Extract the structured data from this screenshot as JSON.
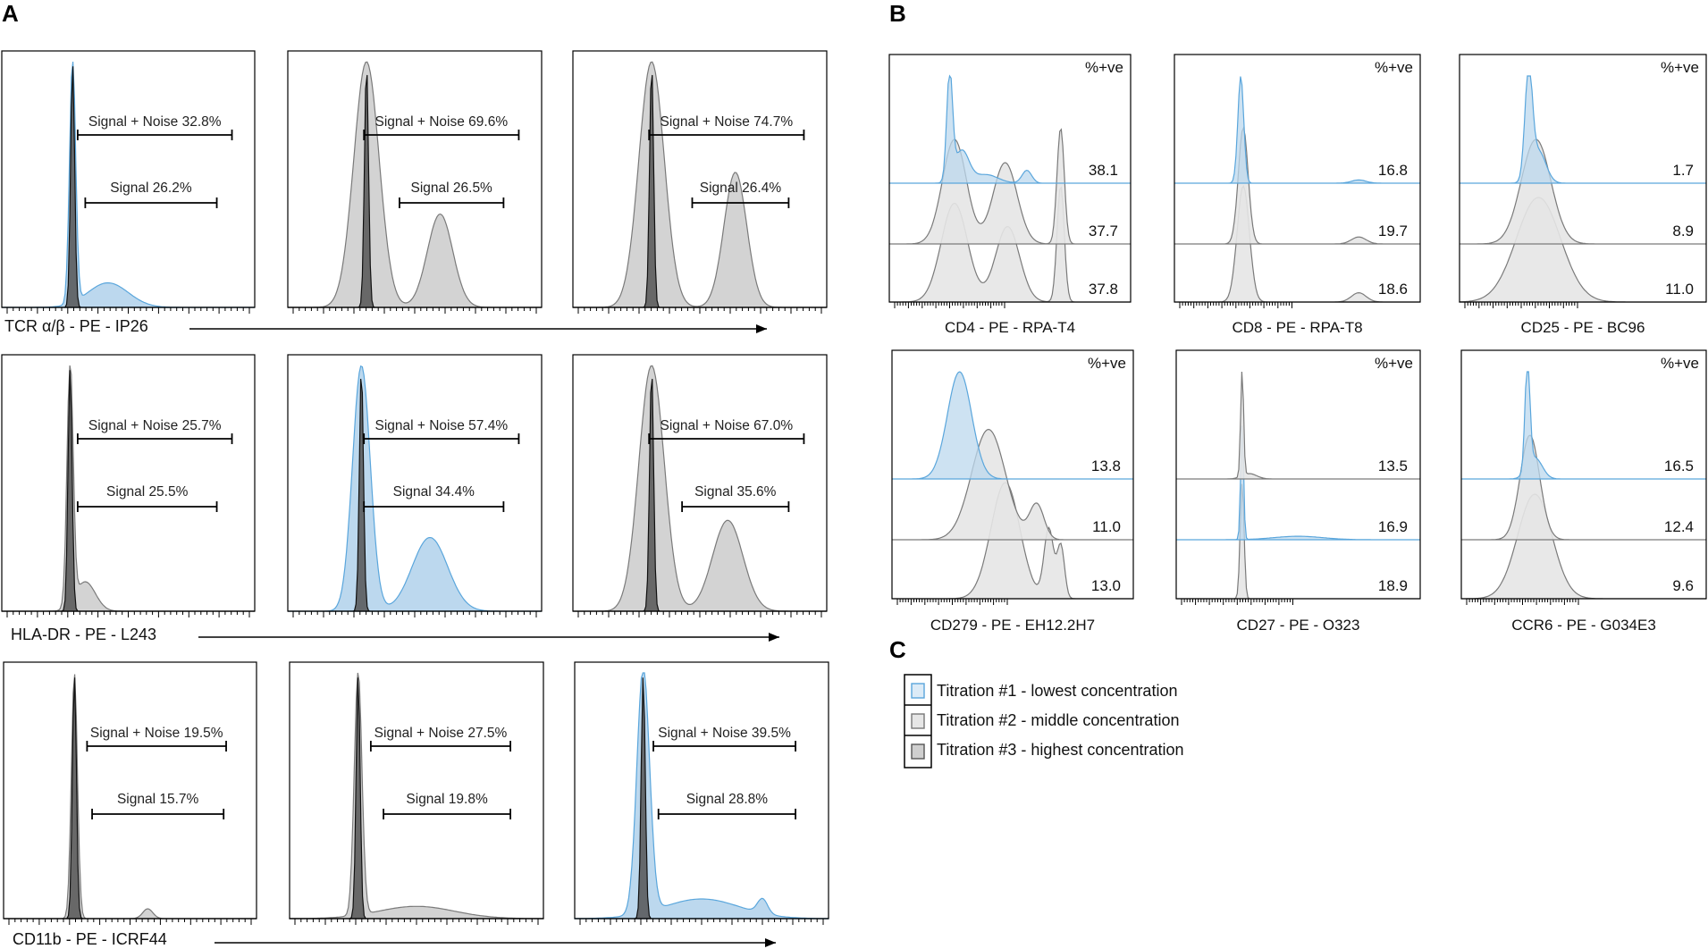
{
  "panel_letters": {
    "a": "A",
    "b": "B",
    "c": "C"
  },
  "colors": {
    "blue_fill": "#bcd8ee",
    "blue_stroke": "#5aa6dc",
    "gray_fill": "#d3d3d3",
    "gray_stroke": "#7a7a7a",
    "light_fill": "#e6e6e6",
    "dark_fill": "#555555",
    "dark_stroke": "#111111"
  },
  "chart_data": [
    {
      "type": "histogram",
      "panel": "A",
      "row_axis_labels": [
        "TCR α/β - PE - IP26",
        "HLA-DR - PE - L243",
        "CD11b - PE - ICRF44"
      ],
      "rows": [
        {
          "marker": "TCR α/β",
          "plots": [
            {
              "titration": 1,
              "color": "blue",
              "signal_noise": "Signal + Noise 32.8%",
              "signal": "Signal 26.2%",
              "signal_noise_gate": [
                0.3,
                0.91
              ],
              "signal_gate": [
                0.33,
                0.85
              ],
              "peaks": [
                [
                  0.28,
                  1.0,
                  0.012
                ],
                [
                  0.42,
                  0.1,
                  0.08
                ]
              ]
            },
            {
              "titration": 2,
              "color": "gray",
              "signal_noise": "Signal + Noise 69.6%",
              "signal": "Signal 26.5%",
              "signal_noise_gate": [
                0.3,
                0.91
              ],
              "signal_gate": [
                0.44,
                0.85
              ],
              "peaks": [
                [
                  0.31,
                  1.0,
                  0.05
                ],
                [
                  0.6,
                  0.38,
                  0.05
                ]
              ]
            },
            {
              "titration": 3,
              "color": "gray",
              "signal_noise": "Signal + Noise 74.7%",
              "signal": "Signal 26.4%",
              "signal_noise_gate": [
                0.3,
                0.91
              ],
              "signal_gate": [
                0.47,
                0.85
              ],
              "peaks": [
                [
                  0.31,
                  1.0,
                  0.05
                ],
                [
                  0.64,
                  0.55,
                  0.045
                ]
              ]
            }
          ]
        },
        {
          "marker": "HLA-DR",
          "plots": [
            {
              "titration": 2,
              "color": "gray",
              "signal_noise": "Signal + Noise 25.7%",
              "signal": "Signal 25.5%",
              "signal_noise_gate": [
                0.3,
                0.91
              ],
              "signal_gate": [
                0.3,
                0.85
              ],
              "peaks": [
                [
                  0.27,
                  1.0,
                  0.012
                ],
                [
                  0.33,
                  0.12,
                  0.04
                ]
              ]
            },
            {
              "titration": 1,
              "color": "blue",
              "signal_noise": "Signal + Noise 57.4%",
              "signal": "Signal 34.4%",
              "signal_noise_gate": [
                0.3,
                0.91
              ],
              "signal_gate": [
                0.3,
                0.85
              ],
              "peaks": [
                [
                  0.29,
                  1.0,
                  0.035
                ],
                [
                  0.56,
                  0.3,
                  0.07
                ]
              ]
            },
            {
              "titration": 3,
              "color": "gray",
              "signal_noise": "Signal + Noise 67.0%",
              "signal": "Signal 35.6%",
              "signal_noise_gate": [
                0.3,
                0.91
              ],
              "signal_gate": [
                0.43,
                0.85
              ],
              "peaks": [
                [
                  0.31,
                  1.0,
                  0.05
                ],
                [
                  0.61,
                  0.37,
                  0.06
                ]
              ]
            }
          ]
        },
        {
          "marker": "CD11b",
          "plots": [
            {
              "titration": 2,
              "color": "gray",
              "signal_noise": "Signal + Noise 19.5%",
              "signal": "Signal 15.7%",
              "signal_noise_gate": [
                0.33,
                0.88
              ],
              "signal_gate": [
                0.35,
                0.87
              ],
              "peaks": [
                [
                  0.28,
                  1.0,
                  0.012
                ],
                [
                  0.57,
                  0.04,
                  0.02
                ]
              ]
            },
            {
              "titration": 2,
              "color": "gray",
              "signal_noise": "Signal + Noise 27.5%",
              "signal": "Signal 19.8%",
              "signal_noise_gate": [
                0.32,
                0.87
              ],
              "signal_gate": [
                0.37,
                0.87
              ],
              "peaks": [
                [
                  0.27,
                  1.0,
                  0.015
                ],
                [
                  0.5,
                  0.05,
                  0.15
                ]
              ]
            },
            {
              "titration": 1,
              "color": "blue",
              "signal_noise": "Signal + Noise 39.5%",
              "signal": "Signal 28.8%",
              "signal_noise_gate": [
                0.31,
                0.87
              ],
              "signal_gate": [
                0.33,
                0.87
              ],
              "peaks": [
                [
                  0.27,
                  1.0,
                  0.025
                ],
                [
                  0.5,
                  0.08,
                  0.15
                ],
                [
                  0.74,
                  0.06,
                  0.02
                ]
              ]
            }
          ]
        }
      ]
    },
    {
      "type": "histogram_overlay",
      "panel": "B",
      "header": "%+ve",
      "plots": [
        {
          "label": "CD4 - PE - RPA-T4",
          "values": [
            "38.1",
            "37.7",
            "37.8"
          ]
        },
        {
          "label": "CD8 - PE - RPA-T8",
          "values": [
            "16.8",
            "19.7",
            "18.6"
          ]
        },
        {
          "label": "CD25 - PE - BC96",
          "values": [
            "1.7",
            "8.9",
            "11.0"
          ]
        },
        {
          "label": "CD279 - PE - EH12.2H7",
          "values": [
            "13.8",
            "11.0",
            "13.0"
          ]
        },
        {
          "label": "CD27 - PE - O323",
          "values": [
            "13.5",
            "16.9",
            "18.9"
          ]
        },
        {
          "label": "CCR6 - PE - G034E3",
          "values": [
            "16.5",
            "12.4",
            "9.6"
          ]
        }
      ]
    }
  ],
  "legend": {
    "items": [
      {
        "label": "Titration #1 - lowest concentration",
        "color": "blue"
      },
      {
        "label": "Titration #2 - middle concentration",
        "color": "gray"
      },
      {
        "label": "Titration #3 - highest concentration",
        "color": "gray"
      }
    ]
  }
}
